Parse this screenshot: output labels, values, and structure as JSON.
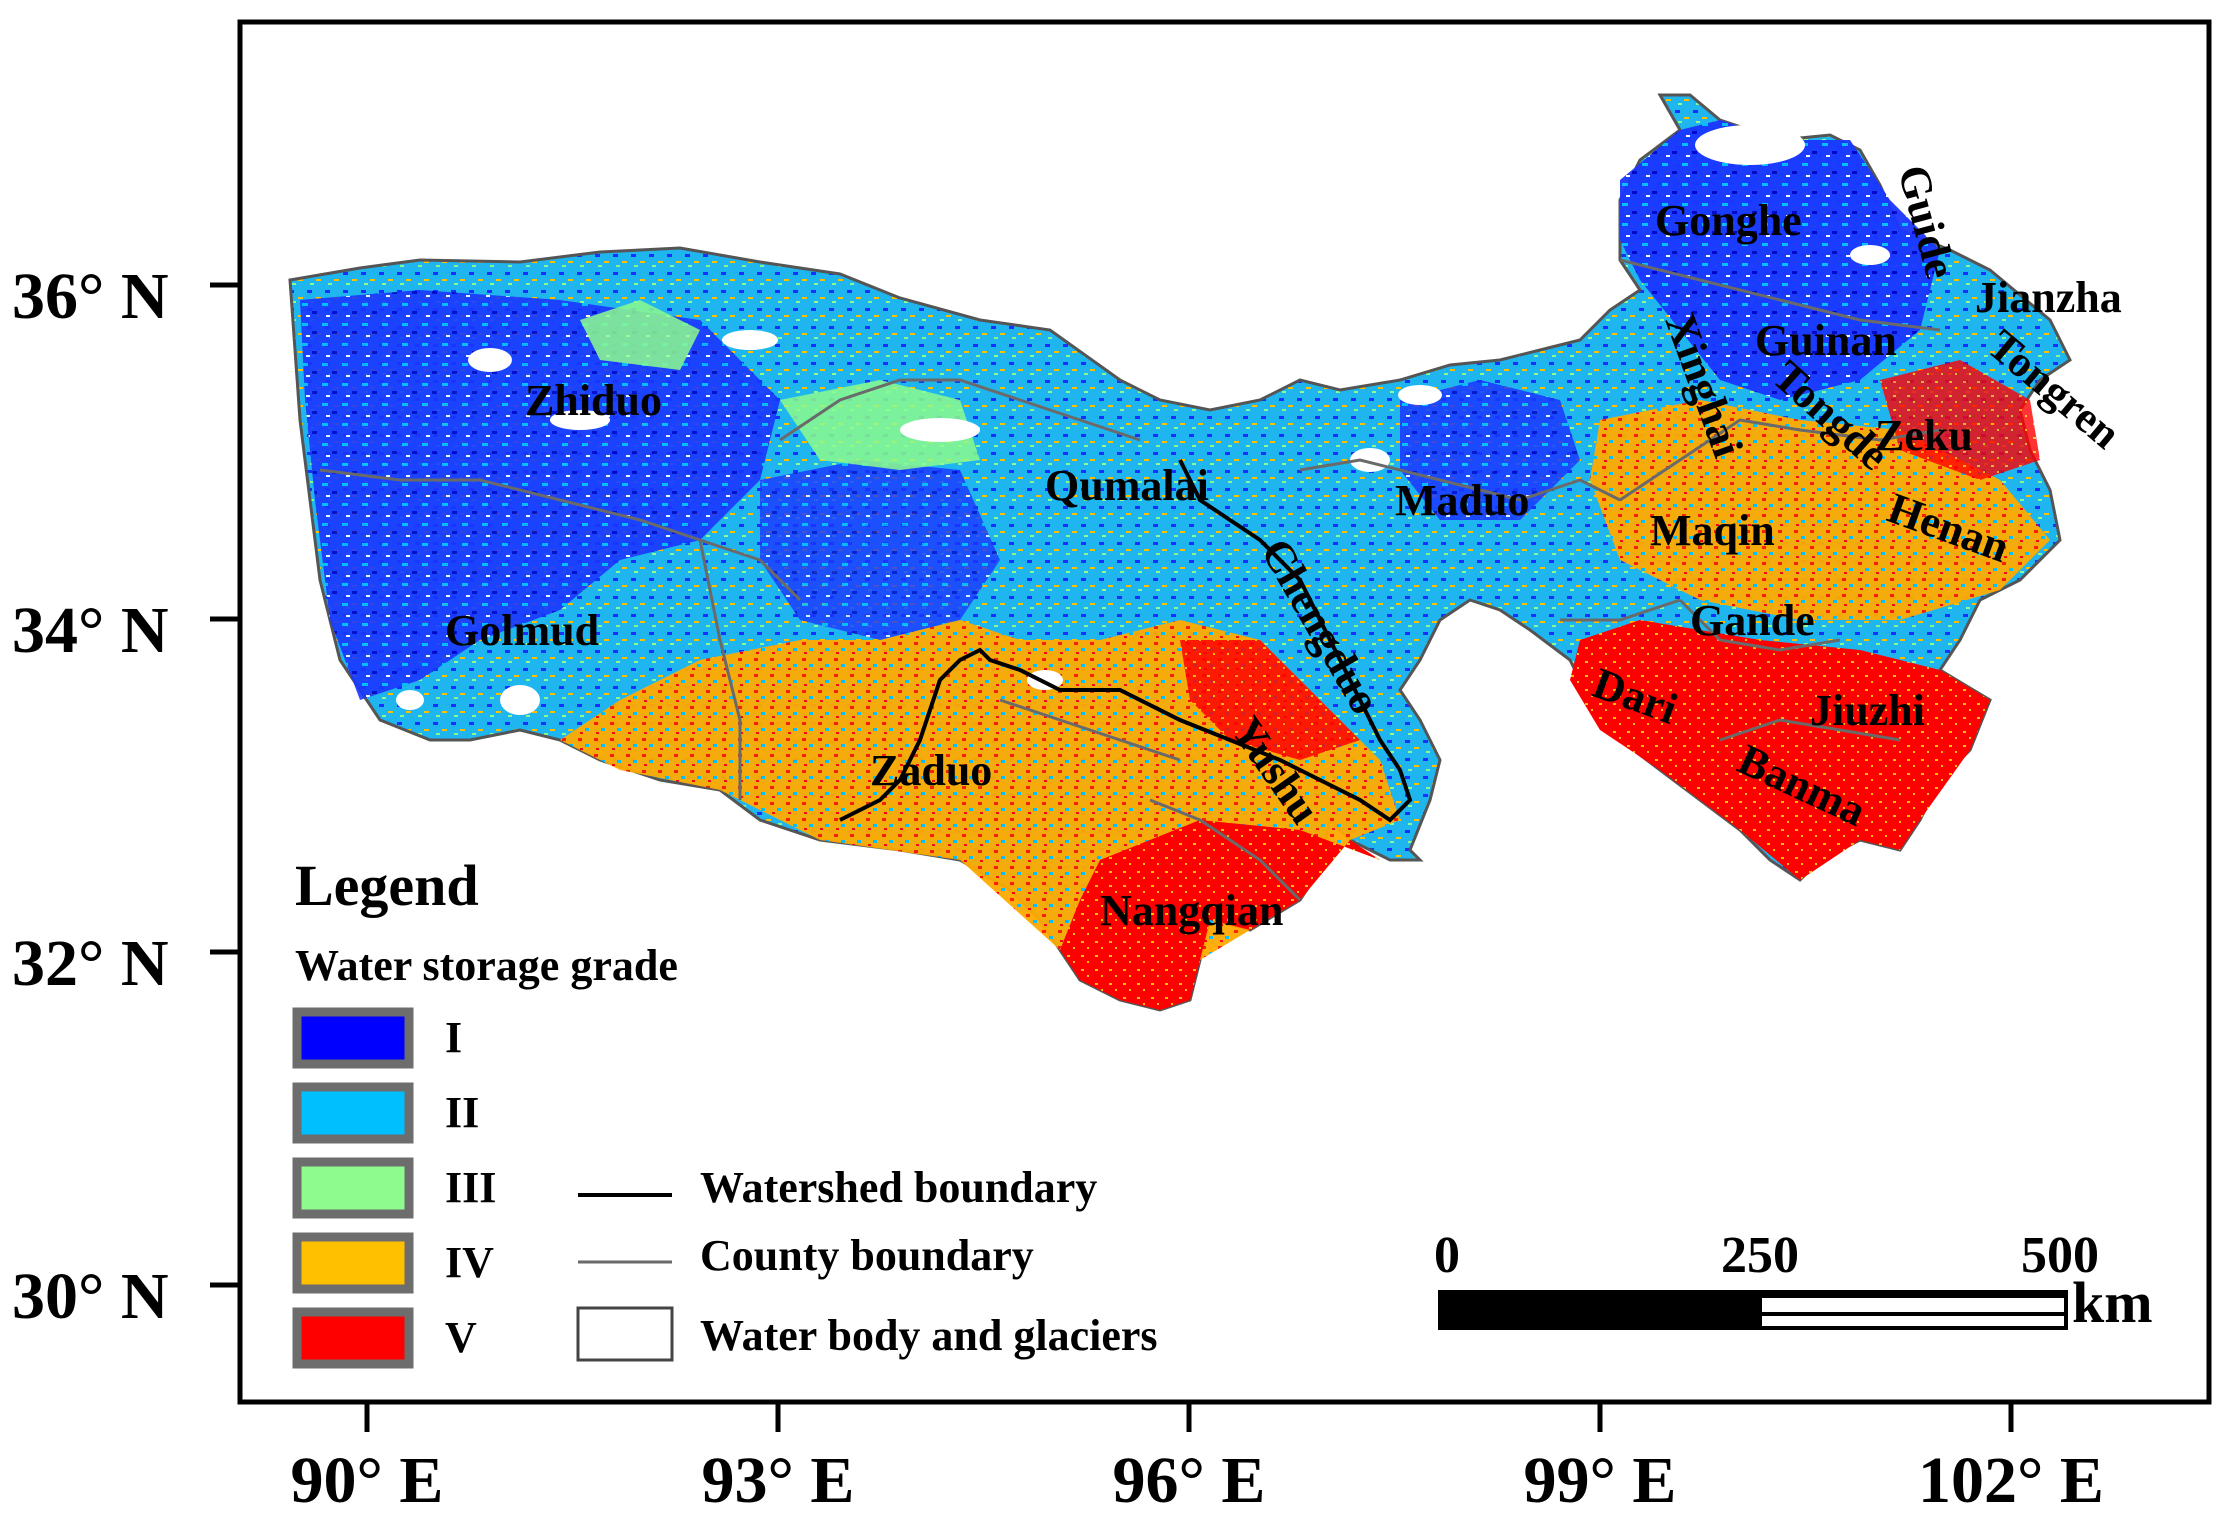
{
  "map": {
    "axes": {
      "lat_labels": [
        "36° N",
        "34° N",
        "32° N",
        "30° N"
      ],
      "lon_labels": [
        "90° E",
        "93° E",
        "96° E",
        "99° E",
        "102° E"
      ]
    },
    "counties": [
      "Zhiduo",
      "Golmud",
      "Qumalai",
      "Maduo",
      "Chengduo",
      "Zaduo",
      "Yushu",
      "Nangqian",
      "Gonghe",
      "Guide",
      "Jianzha",
      "Guinan",
      "Tongren",
      "Xinghai",
      "Tongde",
      "Zeku",
      "Henan",
      "Maqin",
      "Gande",
      "Dari",
      "Jiuzhi",
      "Banma"
    ],
    "legend": {
      "title": "Legend",
      "subtitle": "Water storage grade",
      "grades": [
        {
          "label": "I",
          "color": "#0000ff"
        },
        {
          "label": "II",
          "color": "#00bfff"
        },
        {
          "label": "III",
          "color": "#8dfb8d"
        },
        {
          "label": "IV",
          "color": "#ffc000"
        },
        {
          "label": "V",
          "color": "#ff0000"
        }
      ],
      "lines": [
        {
          "label": "Watershed boundary"
        },
        {
          "label": "County boundary"
        },
        {
          "label": "Water body and glaciers"
        }
      ]
    },
    "scale_bar": {
      "ticks": [
        "0",
        "250",
        "500"
      ],
      "unit": "km"
    }
  }
}
